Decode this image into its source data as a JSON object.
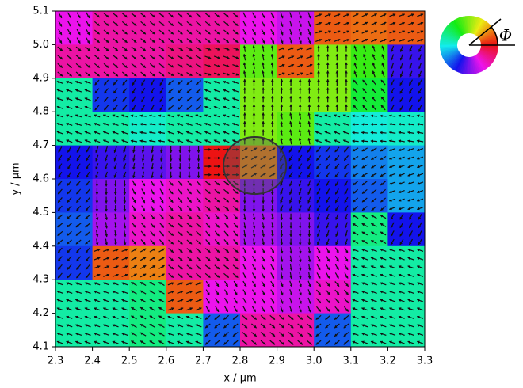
{
  "chart_data": {
    "type": "vector-map",
    "xlabel": "x / μm",
    "ylabel": "y / μm",
    "phi_label": "Φ",
    "xlim": [
      2.3,
      3.3
    ],
    "ylim": [
      4.1,
      5.1
    ],
    "xticks": [
      2.3,
      2.4,
      2.5,
      2.6,
      2.7,
      2.8,
      2.9,
      {
        "value": 3,
        "label": "3.0"
      },
      3.1,
      3.2,
      3.3
    ],
    "yticks": [
      4.1,
      4.2,
      4.3,
      4.4,
      4.5,
      4.6,
      4.7,
      4.8,
      4.9,
      {
        "value": 5,
        "label": "5.0"
      },
      5.1
    ],
    "angles": [
      [
        300,
        320,
        320,
        320,
        320,
        300,
        290,
        20,
        25,
        20
      ],
      [
        320,
        320,
        320,
        330,
        340,
        100,
        20,
        90,
        110,
        250
      ],
      [
        160,
        230,
        240,
        220,
        160,
        90,
        90,
        90,
        130,
        240
      ],
      [
        160,
        160,
        170,
        160,
        160,
        90,
        100,
        160,
        175,
        170
      ],
      [
        240,
        250,
        260,
        270,
        0,
        30,
        240,
        230,
        210,
        200
      ],
      [
        230,
        270,
        300,
        310,
        320,
        270,
        250,
        240,
        220,
        200
      ],
      [
        220,
        280,
        310,
        320,
        310,
        280,
        270,
        250,
        150,
        240
      ],
      [
        230,
        20,
        30,
        320,
        320,
        300,
        280,
        300,
        160,
        160
      ],
      [
        160,
        160,
        150,
        20,
        300,
        300,
        290,
        310,
        160,
        160
      ],
      [
        160,
        160,
        150,
        160,
        220,
        320,
        320,
        220,
        160,
        160
      ]
    ],
    "circle": {
      "x": 2.84,
      "y": 4.64,
      "r": 0.085
    }
  }
}
